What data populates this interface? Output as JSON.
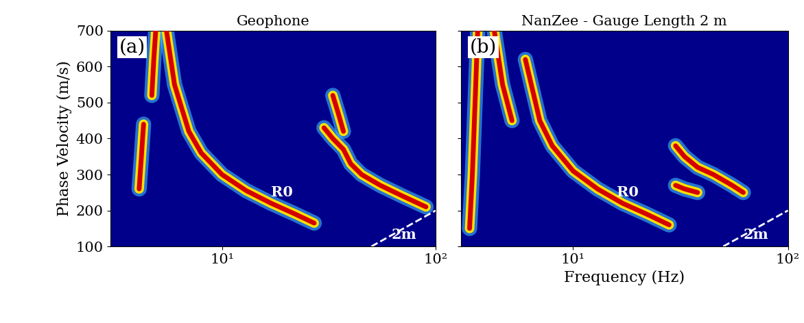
{
  "chart_data": [
    {
      "type": "line",
      "title": "Geophone",
      "y_label": "Phase Velocity (m/s)",
      "log": "x",
      "xlim": [
        3,
        100
      ],
      "xticks": [
        {
          "value": 10,
          "label": "10¹"
        },
        {
          "value": 100,
          "label": "10²"
        }
      ],
      "ylim": [
        100,
        700
      ],
      "yticks": [
        100,
        200,
        300,
        400,
        500,
        600,
        700
      ],
      "series": [
        {
          "x": [
            5.5,
            6,
            7,
            8,
            10,
            13,
            17,
            22,
            27
          ],
          "values": [
            700,
            550,
            420,
            360,
            300,
            255,
            220,
            190,
            165
          ],
          "color": "#d40000",
          "line_style": "solid"
        },
        {
          "x": [
            4.1,
            4.2,
            4.3
          ],
          "values": [
            260,
            350,
            440
          ],
          "color": "#d40000",
          "line_style": "solid"
        },
        {
          "x": [
            4.7,
            4.8,
            4.9
          ],
          "values": [
            520,
            620,
            700
          ],
          "color": "#d40000",
          "line_style": "solid"
        },
        {
          "x": [
            30,
            33,
            37,
            40,
            45,
            55,
            70,
            90
          ],
          "values": [
            430,
            400,
            370,
            330,
            300,
            270,
            240,
            210
          ],
          "color": "#d40000",
          "line_style": "solid"
        },
        {
          "x": [
            33,
            35,
            37
          ],
          "values": [
            520,
            470,
            420
          ],
          "color": "#d40000",
          "line_style": "solid"
        },
        {
          "x": [
            50,
            100
          ],
          "values": [
            100,
            200
          ],
          "color": "#ffffff",
          "line_style": "dashed"
        }
      ],
      "annotations": [
        {
          "text": "(a)",
          "x": 3.3,
          "y": 640
        },
        {
          "text": "R0",
          "x": 17,
          "y": 240
        },
        {
          "text": "2m",
          "x": 62,
          "y": 122
        }
      ]
    },
    {
      "type": "line",
      "title": "NanZee - Gauge Length 2 m",
      "x_label": "Frequency (Hz)",
      "log": "x",
      "xlim": [
        3,
        100
      ],
      "xticks": [
        {
          "value": 10,
          "label": "10¹"
        },
        {
          "value": 100,
          "label": "10²"
        }
      ],
      "ylim": [
        100,
        700
      ],
      "yticks": [
        100,
        200,
        300,
        400,
        500,
        600,
        700
      ],
      "tick_labels": "x",
      "series": [
        {
          "x": [
            6,
            7,
            8,
            10,
            13,
            17,
            22,
            28
          ],
          "values": [
            620,
            450,
            380,
            310,
            260,
            220,
            190,
            160
          ],
          "color": "#d40000",
          "line_style": "solid"
        },
        {
          "x": [
            3.3,
            3.4,
            3.5,
            3.6
          ],
          "values": [
            150,
            300,
            500,
            700
          ],
          "color": "#d40000",
          "line_style": "solid"
        },
        {
          "x": [
            4.3,
            4.7,
            5.2
          ],
          "values": [
            700,
            550,
            450
          ],
          "color": "#d40000",
          "line_style": "solid"
        },
        {
          "x": [
            30,
            33,
            38,
            45,
            55,
            62
          ],
          "values": [
            380,
            350,
            320,
            300,
            270,
            250
          ],
          "color": "#d40000",
          "line_style": "solid"
        },
        {
          "x": [
            30,
            33,
            38
          ],
          "values": [
            270,
            260,
            250
          ],
          "color": "#d40000",
          "line_style": "solid"
        },
        {
          "x": [
            50,
            100
          ],
          "values": [
            100,
            200
          ],
          "color": "#ffffff",
          "line_style": "dashed"
        }
      ],
      "annotations": [
        {
          "text": "(b)",
          "x": 3.3,
          "y": 640
        },
        {
          "text": "R0",
          "x": 16,
          "y": 240
        },
        {
          "text": "2m",
          "x": 62,
          "y": 122
        }
      ]
    }
  ]
}
